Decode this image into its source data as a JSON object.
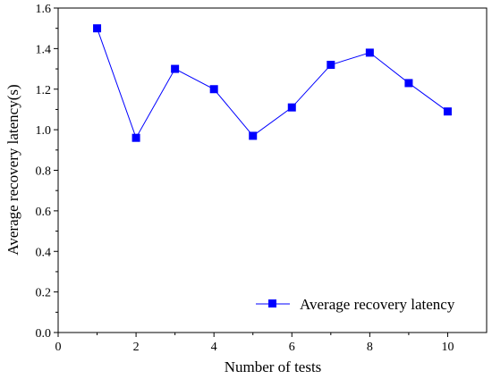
{
  "chart_data": {
    "type": "line",
    "title": "",
    "xlabel": "Number of tests",
    "ylabel": "Average recovery latency(s)",
    "xlim": [
      0,
      11
    ],
    "ylim": [
      0.0,
      1.6
    ],
    "xticks": [
      0,
      2,
      4,
      6,
      8,
      10
    ],
    "xtick_labels": [
      "0",
      "2",
      "4",
      "6",
      "8",
      "10"
    ],
    "yticks": [
      0.0,
      0.2,
      0.4,
      0.6,
      0.8,
      1.0,
      1.2,
      1.4,
      1.6
    ],
    "ytick_labels": [
      "0.0",
      "0.2",
      "0.4",
      "0.6",
      "0.8",
      "1.0",
      "1.2",
      "1.4",
      "1.6"
    ],
    "grid": false,
    "legend_position": "bottom-right",
    "series": [
      {
        "name": "Average recovery latency",
        "color": "#0000ff",
        "marker": "square",
        "x": [
          1,
          2,
          3,
          4,
          5,
          6,
          7,
          8,
          9,
          10
        ],
        "y": [
          1.5,
          0.96,
          1.3,
          1.2,
          0.97,
          1.11,
          1.32,
          1.38,
          1.23,
          1.09
        ]
      }
    ]
  }
}
